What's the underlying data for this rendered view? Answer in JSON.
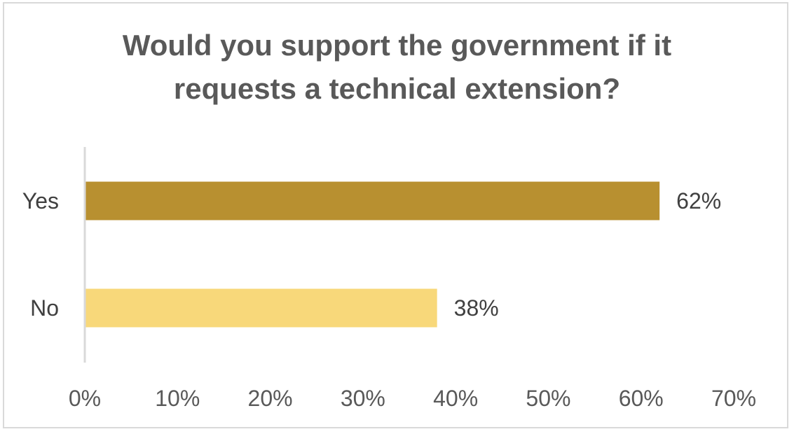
{
  "chart_data": {
    "type": "bar",
    "orientation": "horizontal",
    "title": "Would you support the government if it\nrequests a technical extension?",
    "categories": [
      "Yes",
      "No"
    ],
    "values": [
      62,
      38
    ],
    "value_labels": [
      "62%",
      "38%"
    ],
    "bar_colors": [
      "#b89030",
      "#f8d87a"
    ],
    "xlim": [
      0,
      70
    ],
    "xticks": [
      0,
      10,
      20,
      30,
      40,
      50,
      60,
      70
    ],
    "xtick_labels": [
      "0%",
      "10%",
      "20%",
      "30%",
      "40%",
      "50%",
      "60%",
      "70%"
    ],
    "xlabel": "",
    "ylabel": "",
    "grid": false,
    "legend": "none"
  }
}
